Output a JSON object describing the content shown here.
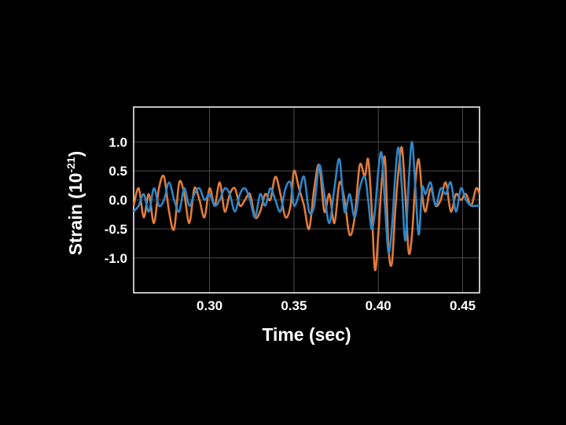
{
  "chart_data": {
    "type": "line",
    "title": "",
    "xlabel": "Time (sec)",
    "ylabel_main": "Strain (10",
    "ylabel_exp": "-21",
    "ylabel_close": ")",
    "xlim": [
      0.255,
      0.46
    ],
    "ylim": [
      -1.6,
      1.6
    ],
    "xticks": [
      0.3,
      0.35,
      0.4,
      0.45
    ],
    "yticks": [
      1.0,
      0.5,
      0.0,
      -0.5,
      -1.0
    ],
    "xtick_labels": [
      "0.30",
      "0.35",
      "0.40",
      "0.45"
    ],
    "ytick_labels": [
      "1.0",
      "0.5",
      "0.0",
      "-0.5",
      "-1.0"
    ],
    "grid": true,
    "legend": "none",
    "series": [
      {
        "color": "#e07b39",
        "x": [
          0.255,
          0.258,
          0.261,
          0.264,
          0.267,
          0.27,
          0.273,
          0.276,
          0.279,
          0.282,
          0.285,
          0.288,
          0.291,
          0.294,
          0.297,
          0.3,
          0.303,
          0.306,
          0.309,
          0.312,
          0.315,
          0.318,
          0.321,
          0.324,
          0.327,
          0.33,
          0.333,
          0.336,
          0.339,
          0.342,
          0.345,
          0.348,
          0.35,
          0.353,
          0.356,
          0.359,
          0.362,
          0.365,
          0.368,
          0.371,
          0.374,
          0.377,
          0.38,
          0.383,
          0.386,
          0.389,
          0.392,
          0.394,
          0.396,
          0.398,
          0.4,
          0.402,
          0.404,
          0.406,
          0.408,
          0.41,
          0.412,
          0.414,
          0.416,
          0.418,
          0.42,
          0.422,
          0.424,
          0.426,
          0.428,
          0.431,
          0.434,
          0.437,
          0.44,
          0.443,
          0.446,
          0.449,
          0.452,
          0.455,
          0.458,
          0.46
        ],
        "y": [
          -0.1,
          0.2,
          -0.3,
          0.1,
          -0.4,
          0.2,
          0.4,
          -0.2,
          -0.5,
          0.3,
          0.1,
          -0.4,
          0.2,
          0.0,
          -0.3,
          0.2,
          -0.1,
          0.3,
          -0.2,
          0.1,
          0.2,
          -0.1,
          0.0,
          0.1,
          -0.3,
          -0.2,
          0.1,
          0.0,
          0.4,
          0.1,
          -0.3,
          -0.1,
          0.5,
          0.2,
          -0.1,
          -0.5,
          0.2,
          0.6,
          -0.2,
          0.1,
          -0.4,
          0.3,
          0.0,
          -0.6,
          -0.3,
          0.6,
          0.4,
          0.7,
          -0.1,
          -1.2,
          -0.6,
          0.3,
          0.7,
          -0.8,
          -1.1,
          -0.2,
          0.5,
          0.9,
          0.1,
          -0.9,
          -0.6,
          0.3,
          0.7,
          0.1,
          -0.2,
          0.2,
          -0.1,
          0.0,
          0.3,
          -0.2,
          0.1,
          0.0,
          0.1,
          -0.1,
          0.2,
          0.1
        ]
      },
      {
        "color": "#2e86c9",
        "x": [
          0.255,
          0.258,
          0.261,
          0.264,
          0.267,
          0.27,
          0.273,
          0.276,
          0.279,
          0.282,
          0.285,
          0.288,
          0.291,
          0.294,
          0.297,
          0.3,
          0.303,
          0.306,
          0.309,
          0.312,
          0.315,
          0.318,
          0.321,
          0.324,
          0.327,
          0.33,
          0.333,
          0.336,
          0.339,
          0.342,
          0.345,
          0.348,
          0.35,
          0.353,
          0.356,
          0.359,
          0.362,
          0.365,
          0.368,
          0.371,
          0.374,
          0.377,
          0.38,
          0.383,
          0.386,
          0.389,
          0.392,
          0.394,
          0.396,
          0.398,
          0.4,
          0.402,
          0.404,
          0.406,
          0.408,
          0.41,
          0.412,
          0.414,
          0.416,
          0.418,
          0.42,
          0.422,
          0.424,
          0.426,
          0.428,
          0.431,
          0.434,
          0.437,
          0.44,
          0.443,
          0.446,
          0.449,
          0.452,
          0.455,
          0.458,
          0.46
        ],
        "y": [
          -0.2,
          -0.1,
          0.1,
          -0.2,
          0.2,
          -0.1,
          0.0,
          0.3,
          0.0,
          -0.2,
          0.2,
          -0.1,
          0.1,
          0.2,
          0.0,
          0.1,
          -0.1,
          0.0,
          0.2,
          0.1,
          -0.2,
          0.1,
          0.2,
          0.0,
          -0.3,
          0.1,
          -0.1,
          0.2,
          0.0,
          -0.2,
          0.2,
          0.3,
          -0.1,
          0.1,
          0.4,
          -0.2,
          -0.1,
          0.6,
          0.1,
          -0.4,
          0.2,
          0.7,
          -0.2,
          0.1,
          -0.3,
          0.2,
          0.4,
          0.0,
          -0.5,
          -0.2,
          0.5,
          0.8,
          -0.1,
          -0.9,
          -0.5,
          0.4,
          0.9,
          0.2,
          -0.7,
          0.3,
          1.0,
          0.2,
          -0.6,
          0.2,
          0.1,
          0.3,
          -0.1,
          0.2,
          0.1,
          0.3,
          -0.2,
          0.2,
          0.0,
          -0.1,
          -0.1,
          -0.1
        ]
      }
    ]
  }
}
